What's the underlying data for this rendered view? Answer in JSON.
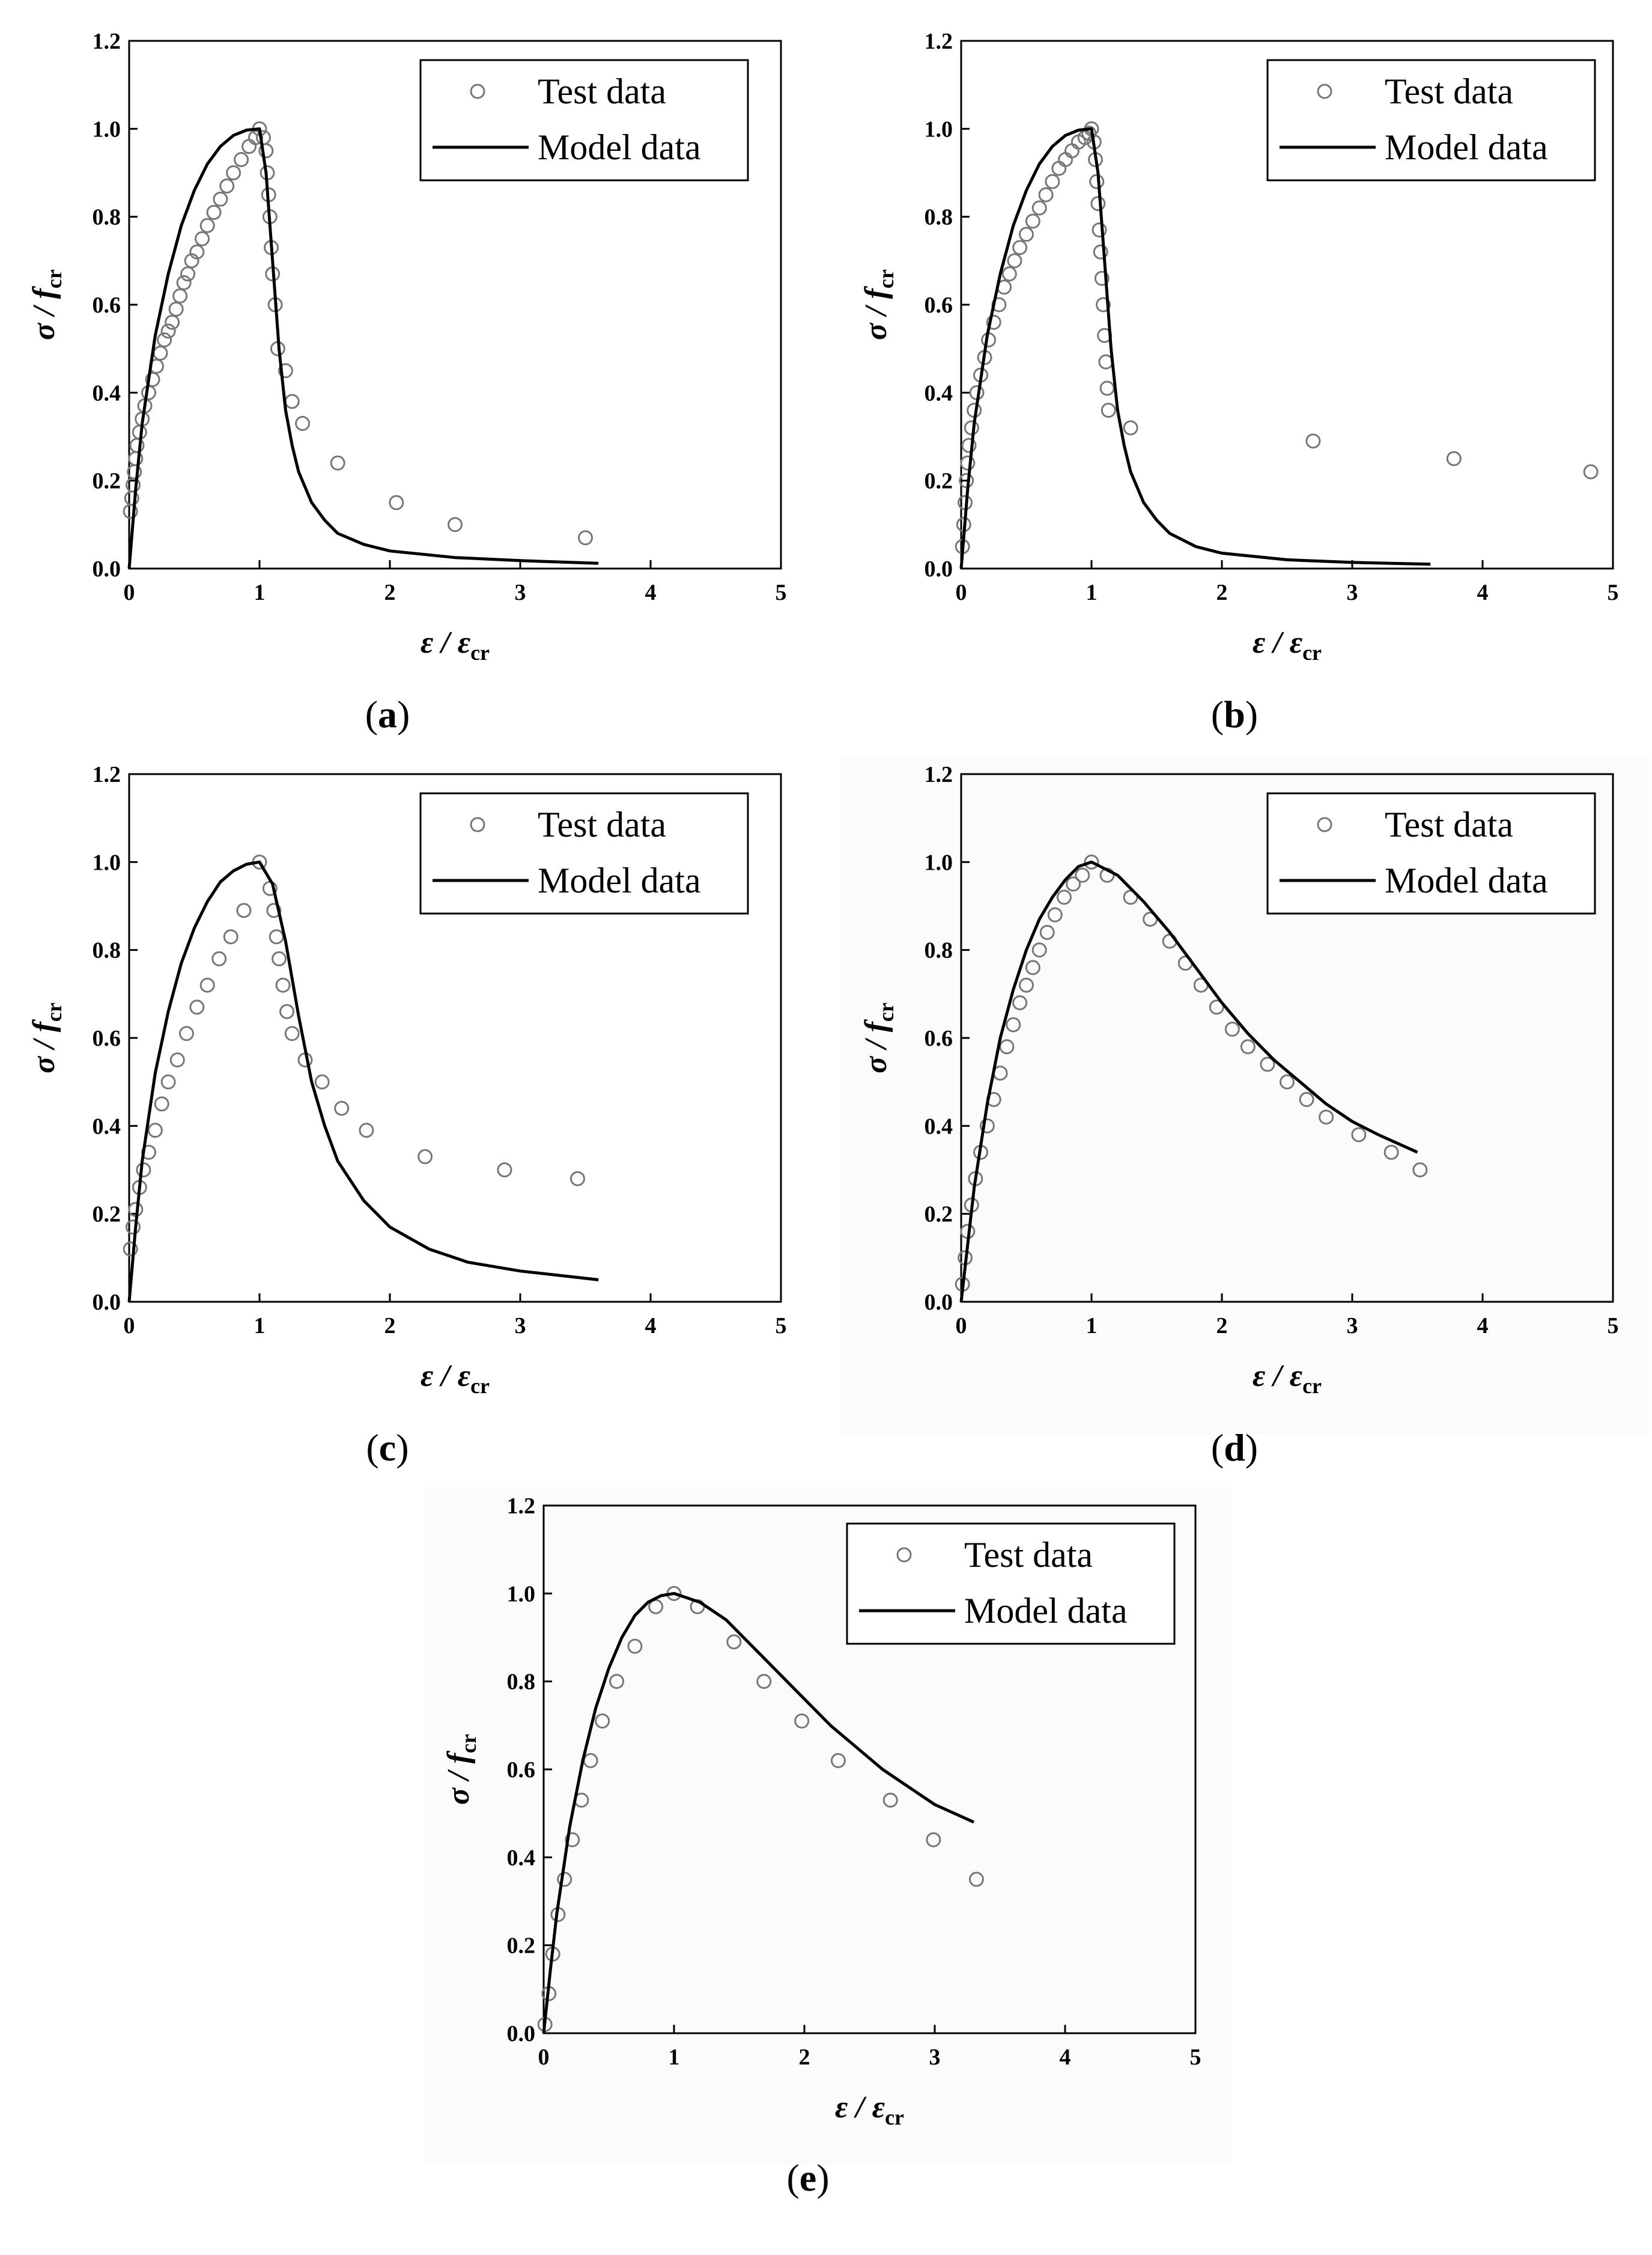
{
  "chart_data": [
    {
      "id": "a",
      "type": "scatter+line",
      "caption_letter": "a",
      "xlabel": {
        "main": "ε / ε",
        "sub": "cr"
      },
      "ylabel": {
        "main": "σ / f",
        "sub": "cr"
      },
      "xlim": [
        0,
        5
      ],
      "ylim": [
        0,
        1.2
      ],
      "xticks": [
        "0",
        "1",
        "2",
        "3",
        "4",
        "5"
      ],
      "yticks": [
        "0.0",
        "0.2",
        "0.4",
        "0.6",
        "0.8",
        "1.0",
        "1.2"
      ],
      "legend": {
        "position": "top-right",
        "entries": [
          "Test data",
          "Model data"
        ]
      },
      "series": [
        {
          "name": "Test data",
          "kind": "scatter",
          "x": [
            0.01,
            0.02,
            0.03,
            0.04,
            0.05,
            0.06,
            0.08,
            0.1,
            0.12,
            0.15,
            0.18,
            0.21,
            0.24,
            0.27,
            0.3,
            0.33,
            0.36,
            0.39,
            0.42,
            0.45,
            0.48,
            0.52,
            0.56,
            0.6,
            0.65,
            0.7,
            0.75,
            0.8,
            0.86,
            0.92,
            0.97,
            1.0,
            1.03,
            1.05,
            1.06,
            1.07,
            1.08,
            1.09,
            1.1,
            1.12,
            1.14,
            1.2,
            1.25,
            1.33,
            1.6,
            2.05,
            2.5,
            3.5
          ],
          "y": [
            0.13,
            0.16,
            0.19,
            0.22,
            0.25,
            0.28,
            0.31,
            0.34,
            0.37,
            0.4,
            0.43,
            0.46,
            0.49,
            0.52,
            0.54,
            0.56,
            0.59,
            0.62,
            0.65,
            0.67,
            0.7,
            0.72,
            0.75,
            0.78,
            0.81,
            0.84,
            0.87,
            0.9,
            0.93,
            0.96,
            0.98,
            1.0,
            0.98,
            0.95,
            0.9,
            0.85,
            0.8,
            0.73,
            0.67,
            0.6,
            0.5,
            0.45,
            0.38,
            0.33,
            0.24,
            0.15,
            0.1,
            0.07
          ]
        },
        {
          "name": "Model data",
          "kind": "line",
          "x": [
            0,
            0.05,
            0.1,
            0.2,
            0.3,
            0.4,
            0.5,
            0.6,
            0.7,
            0.8,
            0.9,
            1.0,
            1.05,
            1.1,
            1.15,
            1.2,
            1.25,
            1.3,
            1.4,
            1.5,
            1.6,
            1.8,
            2.0,
            2.5,
            3.0,
            3.6
          ],
          "y": [
            0,
            0.18,
            0.33,
            0.53,
            0.67,
            0.78,
            0.86,
            0.92,
            0.96,
            0.985,
            0.997,
            1.0,
            0.9,
            0.7,
            0.5,
            0.36,
            0.28,
            0.22,
            0.15,
            0.11,
            0.08,
            0.055,
            0.04,
            0.025,
            0.018,
            0.012
          ]
        }
      ]
    },
    {
      "id": "b",
      "type": "scatter+line",
      "caption_letter": "b",
      "xlabel": {
        "main": "ε / ε",
        "sub": "cr"
      },
      "ylabel": {
        "main": "σ / f",
        "sub": "cr"
      },
      "xlim": [
        0,
        5
      ],
      "ylim": [
        0,
        1.2
      ],
      "xticks": [
        "0",
        "1",
        "2",
        "3",
        "4",
        "5"
      ],
      "yticks": [
        "0.0",
        "0.2",
        "0.4",
        "0.6",
        "0.8",
        "1.0",
        "1.2"
      ],
      "legend": {
        "position": "top-right",
        "entries": [
          "Test data",
          "Model data"
        ]
      },
      "series": [
        {
          "name": "Test data",
          "kind": "scatter",
          "x": [
            0.01,
            0.02,
            0.03,
            0.04,
            0.05,
            0.06,
            0.08,
            0.1,
            0.12,
            0.15,
            0.18,
            0.21,
            0.25,
            0.29,
            0.33,
            0.37,
            0.41,
            0.45,
            0.5,
            0.55,
            0.6,
            0.65,
            0.7,
            0.75,
            0.8,
            0.85,
            0.9,
            0.95,
            0.98,
            1.0,
            1.02,
            1.03,
            1.04,
            1.05,
            1.06,
            1.07,
            1.08,
            1.09,
            1.1,
            1.11,
            1.12,
            1.13,
            1.3,
            2.7,
            3.78,
            4.83
          ],
          "y": [
            0.05,
            0.1,
            0.15,
            0.2,
            0.24,
            0.28,
            0.32,
            0.36,
            0.4,
            0.44,
            0.48,
            0.52,
            0.56,
            0.6,
            0.64,
            0.67,
            0.7,
            0.73,
            0.76,
            0.79,
            0.82,
            0.85,
            0.88,
            0.91,
            0.93,
            0.95,
            0.97,
            0.98,
            0.99,
            1.0,
            0.97,
            0.93,
            0.88,
            0.83,
            0.77,
            0.72,
            0.66,
            0.6,
            0.53,
            0.47,
            0.41,
            0.36,
            0.32,
            0.29,
            0.25,
            0.22
          ]
        },
        {
          "name": "Model data",
          "kind": "line",
          "x": [
            0,
            0.05,
            0.1,
            0.2,
            0.3,
            0.4,
            0.5,
            0.6,
            0.7,
            0.8,
            0.9,
            1.0,
            1.05,
            1.1,
            1.15,
            1.2,
            1.25,
            1.3,
            1.4,
            1.5,
            1.6,
            1.8,
            2.0,
            2.5,
            3.0,
            3.6
          ],
          "y": [
            0,
            0.18,
            0.33,
            0.53,
            0.67,
            0.78,
            0.86,
            0.92,
            0.96,
            0.985,
            0.997,
            1.0,
            0.9,
            0.7,
            0.5,
            0.36,
            0.28,
            0.22,
            0.15,
            0.11,
            0.08,
            0.05,
            0.035,
            0.02,
            0.014,
            0.01
          ]
        }
      ]
    },
    {
      "id": "c",
      "type": "scatter+line",
      "caption_letter": "c",
      "xlabel": {
        "main": "ε / ε",
        "sub": "cr"
      },
      "ylabel": {
        "main": "σ / f",
        "sub": "cr"
      },
      "xlim": [
        0,
        5
      ],
      "ylim": [
        0,
        1.2
      ],
      "xticks": [
        "0",
        "1",
        "2",
        "3",
        "4",
        "5"
      ],
      "yticks": [
        "0.0",
        "0.2",
        "0.4",
        "0.6",
        "0.8",
        "1.0",
        "1.2"
      ],
      "legend": {
        "position": "top-right",
        "entries": [
          "Test data",
          "Model data"
        ]
      },
      "series": [
        {
          "name": "Test data",
          "kind": "scatter",
          "x": [
            0.01,
            0.03,
            0.05,
            0.08,
            0.11,
            0.15,
            0.2,
            0.25,
            0.3,
            0.37,
            0.44,
            0.52,
            0.6,
            0.69,
            0.78,
            0.88,
            1.0,
            1.08,
            1.11,
            1.13,
            1.15,
            1.18,
            1.21,
            1.25,
            1.35,
            1.48,
            1.63,
            1.82,
            2.27,
            2.88,
            3.44
          ],
          "y": [
            0.12,
            0.17,
            0.21,
            0.26,
            0.3,
            0.34,
            0.39,
            0.45,
            0.5,
            0.55,
            0.61,
            0.67,
            0.72,
            0.78,
            0.83,
            0.89,
            1.0,
            0.94,
            0.89,
            0.83,
            0.78,
            0.72,
            0.66,
            0.61,
            0.55,
            0.5,
            0.44,
            0.39,
            0.33,
            0.3,
            0.28
          ]
        },
        {
          "name": "Model data",
          "kind": "line",
          "x": [
            0,
            0.05,
            0.1,
            0.2,
            0.3,
            0.4,
            0.5,
            0.6,
            0.7,
            0.8,
            0.9,
            1.0,
            1.1,
            1.2,
            1.3,
            1.4,
            1.5,
            1.6,
            1.8,
            2.0,
            2.3,
            2.6,
            3.0,
            3.6
          ],
          "y": [
            0,
            0.17,
            0.32,
            0.52,
            0.66,
            0.77,
            0.85,
            0.91,
            0.955,
            0.98,
            0.995,
            1.0,
            0.95,
            0.82,
            0.65,
            0.5,
            0.4,
            0.32,
            0.23,
            0.17,
            0.12,
            0.09,
            0.07,
            0.05
          ]
        }
      ]
    },
    {
      "id": "d",
      "type": "scatter+line",
      "caption_letter": "d",
      "xlabel": {
        "main": "ε / ε",
        "sub": "cr"
      },
      "ylabel": {
        "main": "σ / f",
        "sub": "cr"
      },
      "xlim": [
        0,
        5
      ],
      "ylim": [
        0,
        1.2
      ],
      "xticks": [
        "0",
        "1",
        "2",
        "3",
        "4",
        "5"
      ],
      "yticks": [
        "0.0",
        "0.2",
        "0.4",
        "0.6",
        "0.8",
        "1.0",
        "1.2"
      ],
      "legend": {
        "position": "top-right",
        "entries": [
          "Test data",
          "Model data"
        ]
      },
      "series": [
        {
          "name": "Test data",
          "kind": "scatter",
          "x": [
            0.01,
            0.03,
            0.05,
            0.08,
            0.11,
            0.15,
            0.2,
            0.25,
            0.3,
            0.35,
            0.4,
            0.45,
            0.5,
            0.55,
            0.6,
            0.66,
            0.72,
            0.79,
            0.86,
            0.93,
            1.0,
            1.12,
            1.3,
            1.45,
            1.6,
            1.72,
            1.84,
            1.96,
            2.08,
            2.2,
            2.35,
            2.5,
            2.65,
            2.8,
            3.05,
            3.3,
            3.52
          ],
          "y": [
            0.04,
            0.1,
            0.16,
            0.22,
            0.28,
            0.34,
            0.4,
            0.46,
            0.52,
            0.58,
            0.63,
            0.68,
            0.72,
            0.76,
            0.8,
            0.84,
            0.88,
            0.92,
            0.95,
            0.97,
            1.0,
            0.97,
            0.92,
            0.87,
            0.82,
            0.77,
            0.72,
            0.67,
            0.62,
            0.58,
            0.54,
            0.5,
            0.46,
            0.42,
            0.38,
            0.34,
            0.3
          ]
        },
        {
          "name": "Model data",
          "kind": "line",
          "x": [
            0,
            0.1,
            0.2,
            0.3,
            0.4,
            0.5,
            0.6,
            0.7,
            0.8,
            0.9,
            1.0,
            1.2,
            1.4,
            1.6,
            1.8,
            2.0,
            2.2,
            2.4,
            2.6,
            2.8,
            3.0,
            3.2,
            3.5
          ],
          "y": [
            0,
            0.26,
            0.45,
            0.6,
            0.71,
            0.8,
            0.87,
            0.92,
            0.96,
            0.99,
            1.0,
            0.97,
            0.91,
            0.84,
            0.76,
            0.68,
            0.61,
            0.55,
            0.5,
            0.45,
            0.41,
            0.38,
            0.34
          ]
        }
      ]
    },
    {
      "id": "e",
      "type": "scatter+line",
      "caption_letter": "e",
      "xlabel": {
        "main": "ε / ε",
        "sub": "cr"
      },
      "ylabel": {
        "main": "σ / f",
        "sub": "cr"
      },
      "xlim": [
        0,
        5
      ],
      "ylim": [
        0,
        1.2
      ],
      "xticks": [
        "0",
        "1",
        "2",
        "3",
        "4",
        "5"
      ],
      "yticks": [
        "0.0",
        "0.2",
        "0.4",
        "0.6",
        "0.8",
        "1.0",
        "1.2"
      ],
      "legend": {
        "position": "top-right",
        "entries": [
          "Test data",
          "Model data"
        ]
      },
      "series": [
        {
          "name": "Test data",
          "kind": "scatter",
          "x": [
            0.01,
            0.04,
            0.07,
            0.11,
            0.16,
            0.22,
            0.29,
            0.36,
            0.45,
            0.56,
            0.7,
            0.86,
            1.0,
            1.18,
            1.46,
            1.69,
            1.98,
            2.26,
            2.66,
            2.99,
            3.32
          ],
          "y": [
            0.02,
            0.09,
            0.18,
            0.27,
            0.35,
            0.44,
            0.53,
            0.62,
            0.71,
            0.8,
            0.88,
            0.97,
            1.0,
            0.97,
            0.89,
            0.8,
            0.71,
            0.62,
            0.53,
            0.44,
            0.35
          ]
        },
        {
          "name": "Model data",
          "kind": "line",
          "x": [
            0,
            0.05,
            0.1,
            0.2,
            0.3,
            0.4,
            0.5,
            0.6,
            0.7,
            0.8,
            0.9,
            1.0,
            1.2,
            1.4,
            1.6,
            1.8,
            2.0,
            2.2,
            2.4,
            2.6,
            2.8,
            3.0,
            3.3
          ],
          "y": [
            0,
            0.14,
            0.27,
            0.47,
            0.62,
            0.74,
            0.83,
            0.9,
            0.95,
            0.98,
            0.995,
            1.0,
            0.98,
            0.94,
            0.88,
            0.82,
            0.76,
            0.7,
            0.65,
            0.6,
            0.56,
            0.52,
            0.48
          ]
        }
      ]
    }
  ]
}
